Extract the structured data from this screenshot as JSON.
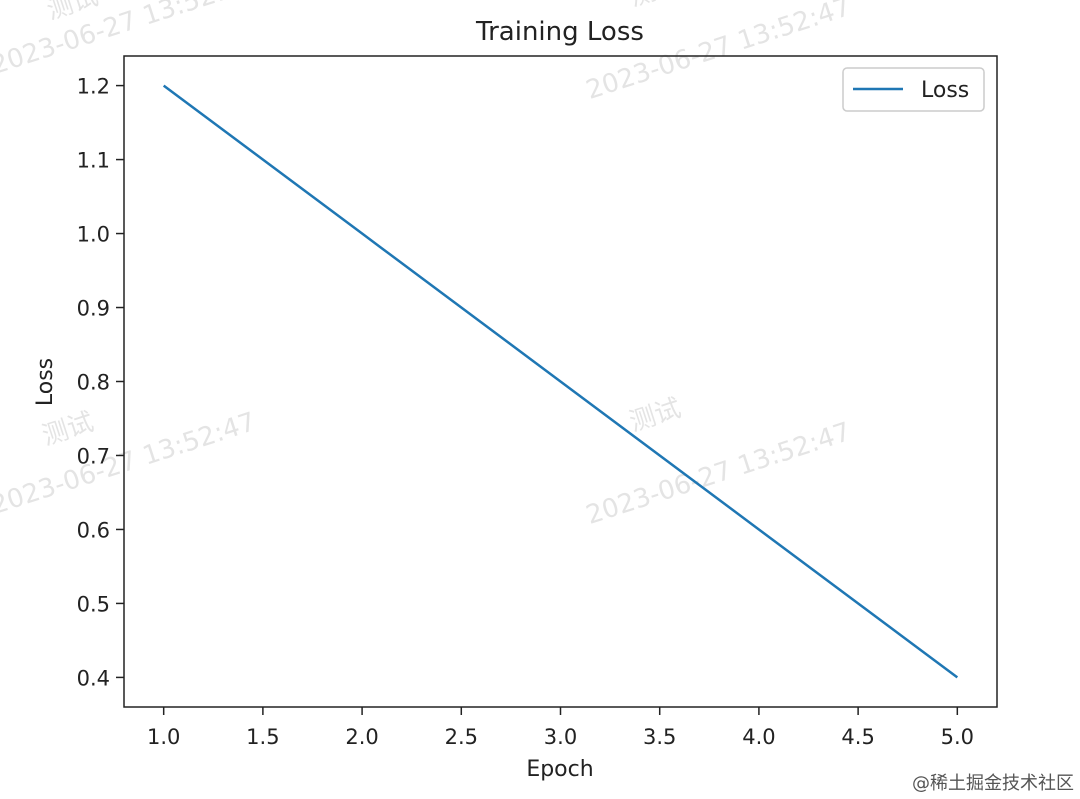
{
  "chart_data": {
    "type": "line",
    "title": "Training Loss",
    "xlabel": "Epoch",
    "ylabel": "Loss",
    "xlim": [
      0.8,
      5.2
    ],
    "ylim": [
      0.36,
      1.24
    ],
    "x_ticks": [
      1.0,
      1.5,
      2.0,
      2.5,
      3.0,
      3.5,
      4.0,
      4.5,
      5.0
    ],
    "y_ticks": [
      0.4,
      0.5,
      0.6,
      0.7,
      0.8,
      0.9,
      1.0,
      1.1,
      1.2
    ],
    "x_tick_labels": [
      "1.0",
      "1.5",
      "2.0",
      "2.5",
      "3.0",
      "3.5",
      "4.0",
      "4.5",
      "5.0"
    ],
    "y_tick_labels": [
      "0.4",
      "0.5",
      "0.6",
      "0.7",
      "0.8",
      "0.9",
      "1.0",
      "1.1",
      "1.2"
    ],
    "grid": false,
    "legend_position": "top-right",
    "series": [
      {
        "name": "Loss",
        "color": "#1f77b4",
        "x": [
          1,
          2,
          3,
          4,
          5
        ],
        "y": [
          1.2,
          1.0,
          0.8,
          0.6,
          0.4
        ]
      }
    ]
  },
  "watermark": {
    "line1": "测试",
    "line2": "2023-06-27 13:52:47"
  },
  "credit": "@稀土掘金技术社区"
}
